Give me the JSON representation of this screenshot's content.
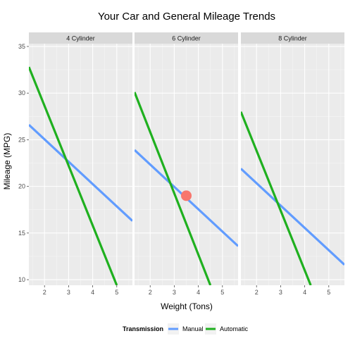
{
  "chart_data": {
    "type": "line",
    "title": "Your Car and General Mileage Trends",
    "xlabel": "Weight (Tons)",
    "ylabel": "Mileage (MPG)",
    "xlim": [
      1.35,
      5.65
    ],
    "ylim": [
      9.4,
      35.3
    ],
    "x_ticks": [
      2,
      3,
      4,
      5
    ],
    "y_ticks": [
      10,
      15,
      20,
      25,
      30,
      35
    ],
    "grid": true,
    "legend": {
      "title": "Transmission",
      "placement": "bottom",
      "entries": [
        {
          "label": "Manual",
          "color": "#619CFF"
        },
        {
          "label": "Automatic",
          "color": "#1FB01F"
        }
      ]
    },
    "point_color": "#F8766D",
    "facets": [
      {
        "label": "4 Cylinder",
        "series": [
          {
            "name": "Manual",
            "x": [
              1.35,
              5.65
            ],
            "y": [
              26.6,
              16.3
            ]
          },
          {
            "name": "Automatic",
            "x": [
              1.35,
              5.0
            ],
            "y": [
              32.8,
              9.4
            ]
          }
        ],
        "point": null
      },
      {
        "label": "6 Cylinder",
        "series": [
          {
            "name": "Manual",
            "x": [
              1.35,
              5.65
            ],
            "y": [
              23.9,
              13.6
            ]
          },
          {
            "name": "Automatic",
            "x": [
              1.35,
              4.5
            ],
            "y": [
              30.1,
              9.4
            ]
          }
        ],
        "point": {
          "x": 3.5,
          "y": 19.0
        }
      },
      {
        "label": "8 Cylinder",
        "series": [
          {
            "name": "Manual",
            "x": [
              1.35,
              5.65
            ],
            "y": [
              21.9,
              11.6
            ]
          },
          {
            "name": "Automatic",
            "x": [
              1.35,
              4.25
            ],
            "y": [
              28.0,
              9.4
            ]
          }
        ],
        "point": null
      }
    ]
  }
}
